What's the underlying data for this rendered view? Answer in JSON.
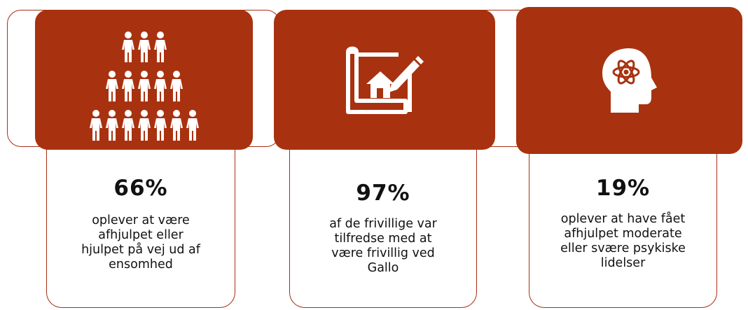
{
  "colors": {
    "accent": "#a83210",
    "text": "#111111",
    "background": "#ffffff"
  },
  "stats": [
    {
      "value": "66%",
      "text": "oplever at være\nafhjulpet eller\nhjulpet på vej ud af\nensomhed",
      "icon": "people-pyramid-icon"
    },
    {
      "value": "97%",
      "text": "af de frivillige var\ntilfredse med at\nvære frivillig ved\nGallo",
      "icon": "house-blueprint-icon"
    },
    {
      "value": "19%",
      "text": "oplever at have fået\nafhjulpet moderate\neller svære psykiske\nlidelser",
      "icon": "head-atom-icon"
    }
  ]
}
